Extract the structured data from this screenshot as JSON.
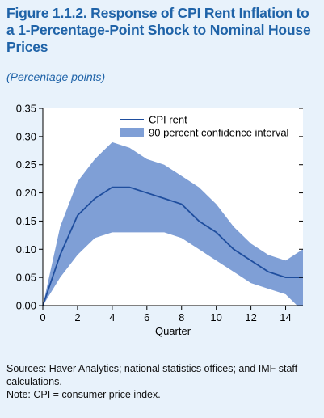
{
  "figure": {
    "title": "Figure 1.1.2.  Response of CPI Rent Inflation to a 1-Percentage-Point Shock to Nominal House Prices",
    "subtitle": "(Percentage points)",
    "sources": "Sources: Haver Analytics; national statistics offices; and IMF staff calculations.",
    "note": "Note: CPI = consumer price index."
  },
  "colors": {
    "background": "#e8f2fb",
    "title": "#1f63a8",
    "plot_bg": "#ffffff",
    "line": "#1f4e9e",
    "band": "#7f9fd6"
  },
  "chart_data": {
    "type": "line",
    "xlabel": "Quarter",
    "ylabel": "",
    "xlim": [
      0,
      15
    ],
    "ylim": [
      0,
      0.35
    ],
    "xticks": [
      0,
      2,
      4,
      6,
      8,
      10,
      12,
      14
    ],
    "yticks": [
      0.0,
      0.05,
      0.1,
      0.15,
      0.2,
      0.25,
      0.3,
      0.35
    ],
    "ytick_labels": [
      "0.00",
      "0.05",
      "0.10",
      "0.15",
      "0.20",
      "0.25",
      "0.30",
      "0.35"
    ],
    "grid": false,
    "legend_position": "top-right",
    "x": [
      0,
      1,
      2,
      3,
      4,
      5,
      6,
      7,
      8,
      9,
      10,
      11,
      12,
      13,
      14,
      15
    ],
    "series": [
      {
        "name": "CPI rent",
        "type": "line",
        "values": [
          0.0,
          0.09,
          0.16,
          0.19,
          0.21,
          0.21,
          0.2,
          0.19,
          0.18,
          0.15,
          0.13,
          0.1,
          0.08,
          0.06,
          0.05,
          0.05
        ]
      },
      {
        "name": "90 percent confidence interval",
        "type": "band",
        "lower": [
          0.0,
          0.05,
          0.09,
          0.12,
          0.13,
          0.13,
          0.13,
          0.13,
          0.12,
          0.1,
          0.08,
          0.06,
          0.04,
          0.03,
          0.02,
          -0.01
        ],
        "upper": [
          0.0,
          0.14,
          0.22,
          0.26,
          0.29,
          0.28,
          0.26,
          0.25,
          0.23,
          0.21,
          0.18,
          0.14,
          0.11,
          0.09,
          0.08,
          0.1
        ]
      }
    ]
  }
}
